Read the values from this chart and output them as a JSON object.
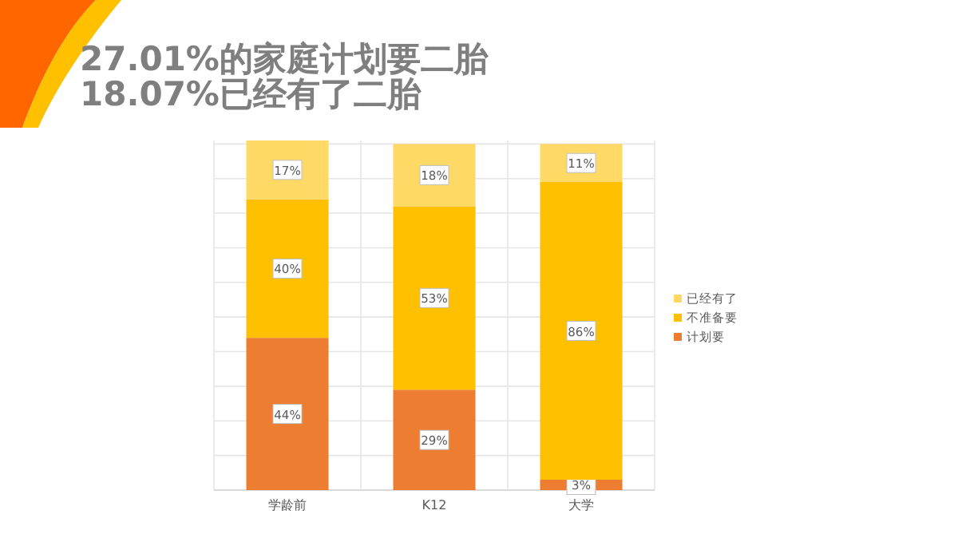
{
  "chart_data": {
    "type": "bar",
    "title": "27.01%的家庭计划要二胎\n18.07%已经有了二胎",
    "categories": [
      "学龄前",
      "K12",
      "大学"
    ],
    "stacked": true,
    "grid": true,
    "legend": "right",
    "tick_labels": "x",
    "series": [
      {
        "name": "计划要",
        "color": "#ed7d31",
        "values": [
          44,
          29,
          3
        ],
        "value_labels": [
          "44%",
          "29%",
          "3%"
        ]
      },
      {
        "name": "不准备要",
        "color": "#ffc000",
        "values": [
          40,
          53,
          86
        ],
        "value_labels": [
          "40%",
          "53%",
          "86%"
        ]
      },
      {
        "name": "已经有了",
        "color": "#ffd966",
        "values": [
          17,
          18,
          11
        ],
        "value_labels": [
          "17%",
          "18%",
          "11%"
        ]
      }
    ]
  }
}
